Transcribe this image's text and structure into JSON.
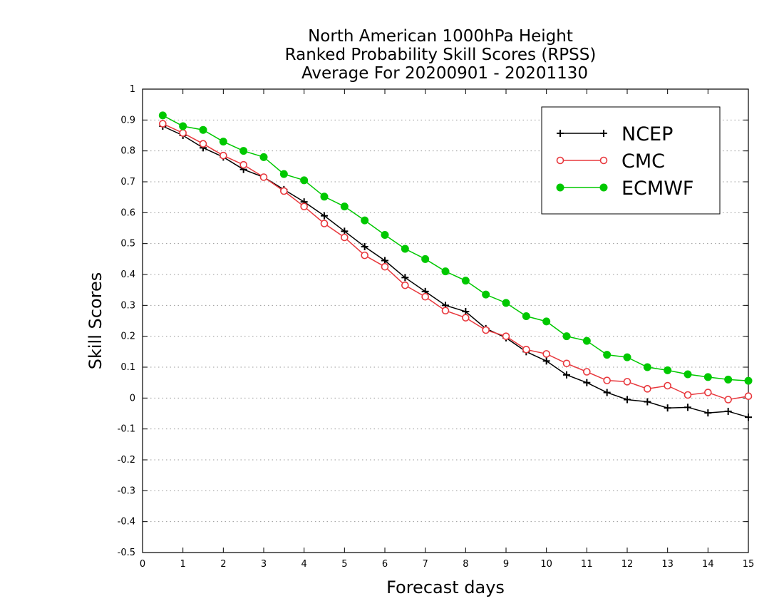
{
  "chart_data": {
    "type": "line",
    "title": [
      "North American 1000hPa Height",
      "Ranked Probability Skill Scores (RPSS)",
      "Average For 20200901 - 20201130"
    ],
    "xlabel": "Forecast days",
    "ylabel": "Skill Scores",
    "xlim": [
      0,
      15
    ],
    "ylim": [
      -0.5,
      1
    ],
    "xticks": [
      "0",
      "1",
      "2",
      "3",
      "4",
      "5",
      "6",
      "7",
      "8",
      "9",
      "10",
      "11",
      "12",
      "13",
      "14",
      "15"
    ],
    "yticks": [
      "1",
      "0.9",
      "0.8",
      "0.7",
      "0.6",
      "0.5",
      "0.4",
      "0.3",
      "0.2",
      "0.1",
      "0",
      "-0.1",
      "-0.2",
      "-0.3",
      "-0.4",
      "-0.5"
    ],
    "grid": "horizontal dotted",
    "legend_position": "top-right",
    "x": [
      0.5,
      1,
      1.5,
      2,
      2.5,
      3,
      3.5,
      4,
      4.5,
      5,
      5.5,
      6,
      6.5,
      7,
      7.5,
      8,
      8.5,
      9,
      9.5,
      10,
      10.5,
      11,
      11.5,
      12,
      12.5,
      13,
      13.5,
      14,
      14.5,
      15
    ],
    "series": [
      {
        "name": "NCEP",
        "color": "#000000",
        "marker": "plus",
        "values": [
          0.88,
          0.85,
          0.81,
          0.78,
          0.74,
          0.715,
          0.675,
          0.635,
          0.59,
          0.54,
          0.49,
          0.445,
          0.39,
          0.345,
          0.3,
          0.28,
          0.225,
          0.195,
          0.15,
          0.12,
          0.075,
          0.05,
          0.018,
          -0.005,
          -0.012,
          -0.032,
          -0.03,
          -0.048,
          -0.043,
          -0.062
        ]
      },
      {
        "name": "CMC",
        "color": "#e8383d",
        "marker": "open-circle",
        "values": [
          0.888,
          0.858,
          0.823,
          0.785,
          0.755,
          0.715,
          0.67,
          0.62,
          0.565,
          0.52,
          0.462,
          0.425,
          0.365,
          0.328,
          0.283,
          0.26,
          0.22,
          0.2,
          0.157,
          0.143,
          0.112,
          0.085,
          0.057,
          0.053,
          0.03,
          0.04,
          0.01,
          0.018,
          -0.005,
          0.006
        ]
      },
      {
        "name": "ECMWF",
        "color": "#00c800",
        "marker": "filled-circle",
        "values": [
          0.915,
          0.88,
          0.868,
          0.83,
          0.8,
          0.78,
          0.725,
          0.705,
          0.652,
          0.62,
          0.575,
          0.528,
          0.483,
          0.45,
          0.41,
          0.38,
          0.335,
          0.308,
          0.265,
          0.248,
          0.2,
          0.185,
          0.14,
          0.132,
          0.1,
          0.09,
          0.077,
          0.068,
          0.06,
          0.056
        ]
      }
    ]
  }
}
